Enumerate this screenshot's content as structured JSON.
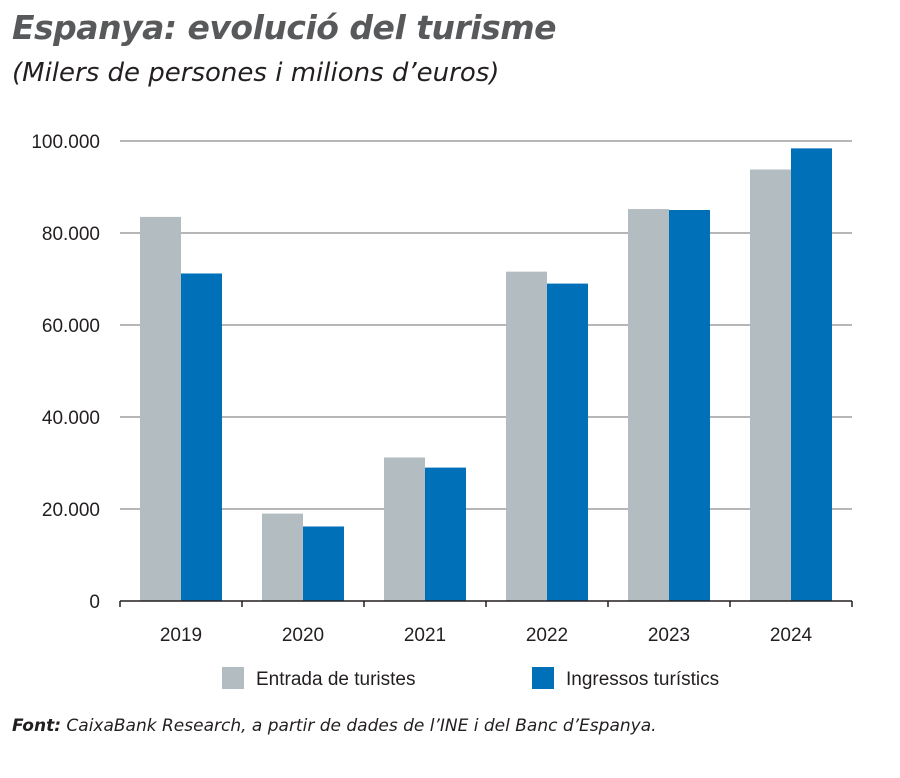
{
  "chart_data": {
    "type": "bar",
    "title": "Espanya: evolució del turisme",
    "subtitle": "(Milers de persones i milions d’euros)",
    "categories": [
      "2019",
      "2020",
      "2021",
      "2022",
      "2023",
      "2024"
    ],
    "series": [
      {
        "name": "Entrada de turistes",
        "color": "#b3bcc1",
        "values": [
          83500,
          19000,
          31200,
          71600,
          85200,
          93800
        ]
      },
      {
        "name": "Ingressos turístics",
        "color": "#0070b8",
        "values": [
          71200,
          16200,
          29000,
          69000,
          85000,
          98400
        ]
      }
    ],
    "ylim": [
      0,
      100000
    ],
    "yticks": [
      0,
      20000,
      40000,
      60000,
      80000,
      100000
    ],
    "ytick_labels": [
      "0",
      "20.000",
      "40.000",
      "60.000",
      "80.000",
      "100.000"
    ],
    "grid": true,
    "legend": "bottom",
    "xlabel": "",
    "ylabel": ""
  },
  "source": {
    "label": "Font:",
    "text": " CaixaBank Research, a partir de dades de l’INE i del Banc d’Espanya."
  }
}
